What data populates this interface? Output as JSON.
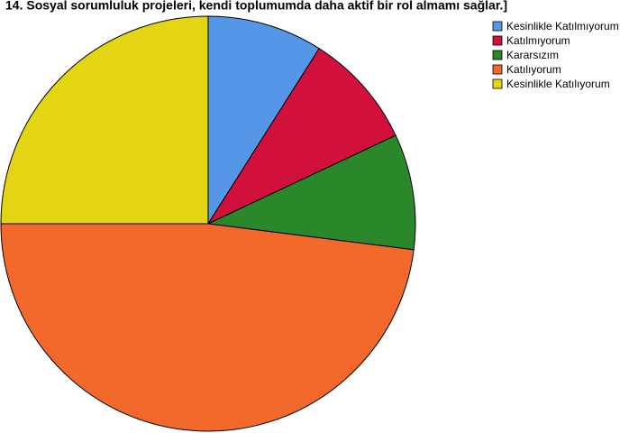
{
  "chart_data": {
    "type": "pie",
    "title": "14. Sosyal sorumluluk projeleri, kendi toplumumda daha aktif bir rol almamı sağlar.]",
    "categories": [
      "Kesinlikle Katılmıyorum",
      "Katılmıyorum",
      "Kararsızım",
      "Katılıyorum",
      "Kesinlikle Katılıyorum"
    ],
    "values": [
      9,
      9,
      9,
      48,
      25
    ],
    "colors": [
      "#5596e6",
      "#d2103c",
      "#2a882a",
      "#f3692b",
      "#e3d514"
    ],
    "legend": "top-right"
  }
}
